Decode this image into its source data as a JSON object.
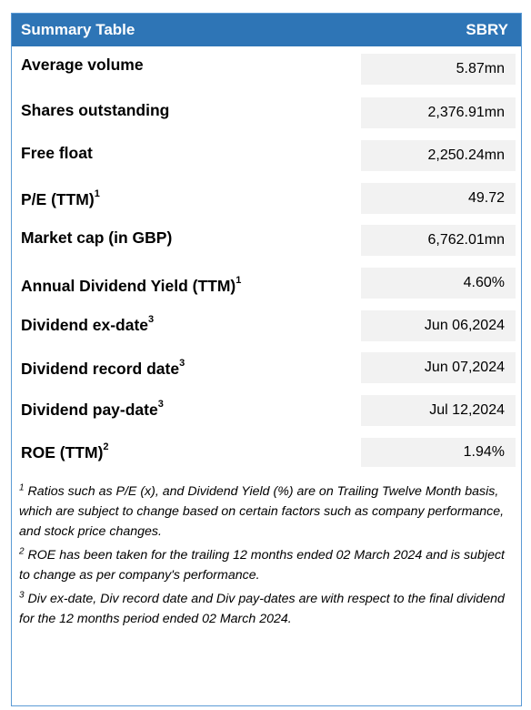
{
  "table": {
    "title": "Summary Table",
    "ticker": "SBRY",
    "rows": [
      {
        "label": "Average volume",
        "sup": "",
        "value": "5.87mn"
      },
      {
        "label": "Shares outstanding",
        "sup": "",
        "value": "2,376.91mn"
      },
      {
        "label": "Free float",
        "sup": "",
        "value": "2,250.24mn"
      },
      {
        "label": "P/E (TTM)",
        "sup": "1",
        "value": "49.72"
      },
      {
        "label": "Market cap (in GBP)",
        "sup": "",
        "value": "6,762.01mn"
      },
      {
        "label": "Annual Dividend Yield (TTM)",
        "sup": "1",
        "value": "4.60%"
      },
      {
        "label": "Dividend ex-date",
        "sup": "3",
        "value": "Jun 06,2024"
      },
      {
        "label": "Dividend record date",
        "sup": "3",
        "value": "Jun 07,2024"
      },
      {
        "label": "Dividend pay-date",
        "sup": "3",
        "value": "Jul 12,2024"
      },
      {
        "label": "ROE (TTM)",
        "sup": "2",
        "value": "1.94%"
      }
    ]
  },
  "notes": [
    {
      "sup": "1",
      "text": "Ratios such as P/E (x), and Dividend Yield (%) are on Trailing Twelve Month basis, which are subject to change based on certain factors such as company performance, and stock price changes."
    },
    {
      "sup": "2",
      "text": "ROE has been taken for the trailing 12 months ended 02 March 2024 and is subject to change as per company's performance."
    },
    {
      "sup": "3",
      "text": "Div ex-date, Div record date and Div pay-dates are with respect to the final dividend for the 12 months period ended 02 March 2024."
    }
  ]
}
